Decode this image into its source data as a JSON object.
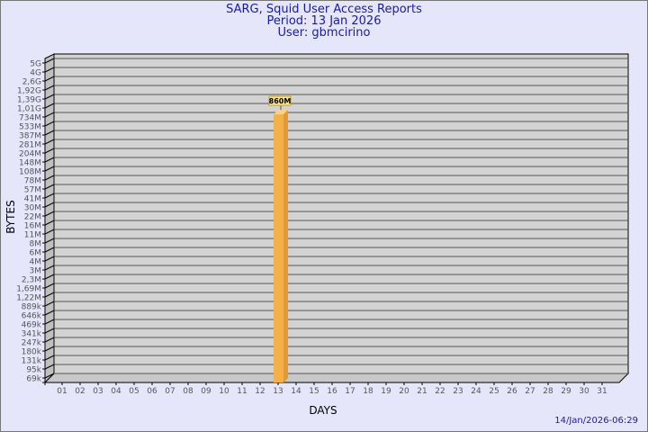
{
  "header": {
    "title": "SARG, Squid User Access Reports",
    "period": "Period: 13 Jan 2026",
    "user": "User: gbmcirino"
  },
  "footer": {
    "timestamp": "14/Jan/2026-06:29"
  },
  "colors": {
    "background": "#e6e6fa",
    "plot": "#d3d3d3",
    "bar": "#f5b04a",
    "text": "#1a1aa6"
  },
  "chart_data": {
    "type": "bar",
    "xlabel": "DAYS",
    "ylabel": "BYTES",
    "yscale": "log",
    "grid": true,
    "ytick_labels": [
      "5G",
      "4G",
      "2,6G",
      "1,92G",
      "1,39G",
      "1,01G",
      "734M",
      "533M",
      "387M",
      "281M",
      "204M",
      "148M",
      "108M",
      "78M",
      "57M",
      "41M",
      "30M",
      "22M",
      "16M",
      "11M",
      "8M",
      "6M",
      "4M",
      "3M",
      "2,3M",
      "1,69M",
      "1,22M",
      "889k",
      "646k",
      "469k",
      "341k",
      "247k",
      "180k",
      "131k",
      "95k",
      "69k"
    ],
    "categories": [
      "01",
      "02",
      "03",
      "04",
      "05",
      "06",
      "07",
      "08",
      "09",
      "10",
      "11",
      "12",
      "13",
      "14",
      "15",
      "16",
      "17",
      "18",
      "19",
      "20",
      "21",
      "22",
      "23",
      "24",
      "25",
      "26",
      "27",
      "28",
      "29",
      "30",
      "31"
    ],
    "bars": [
      {
        "day": "13",
        "value": 860000000,
        "label": "860M"
      }
    ]
  }
}
